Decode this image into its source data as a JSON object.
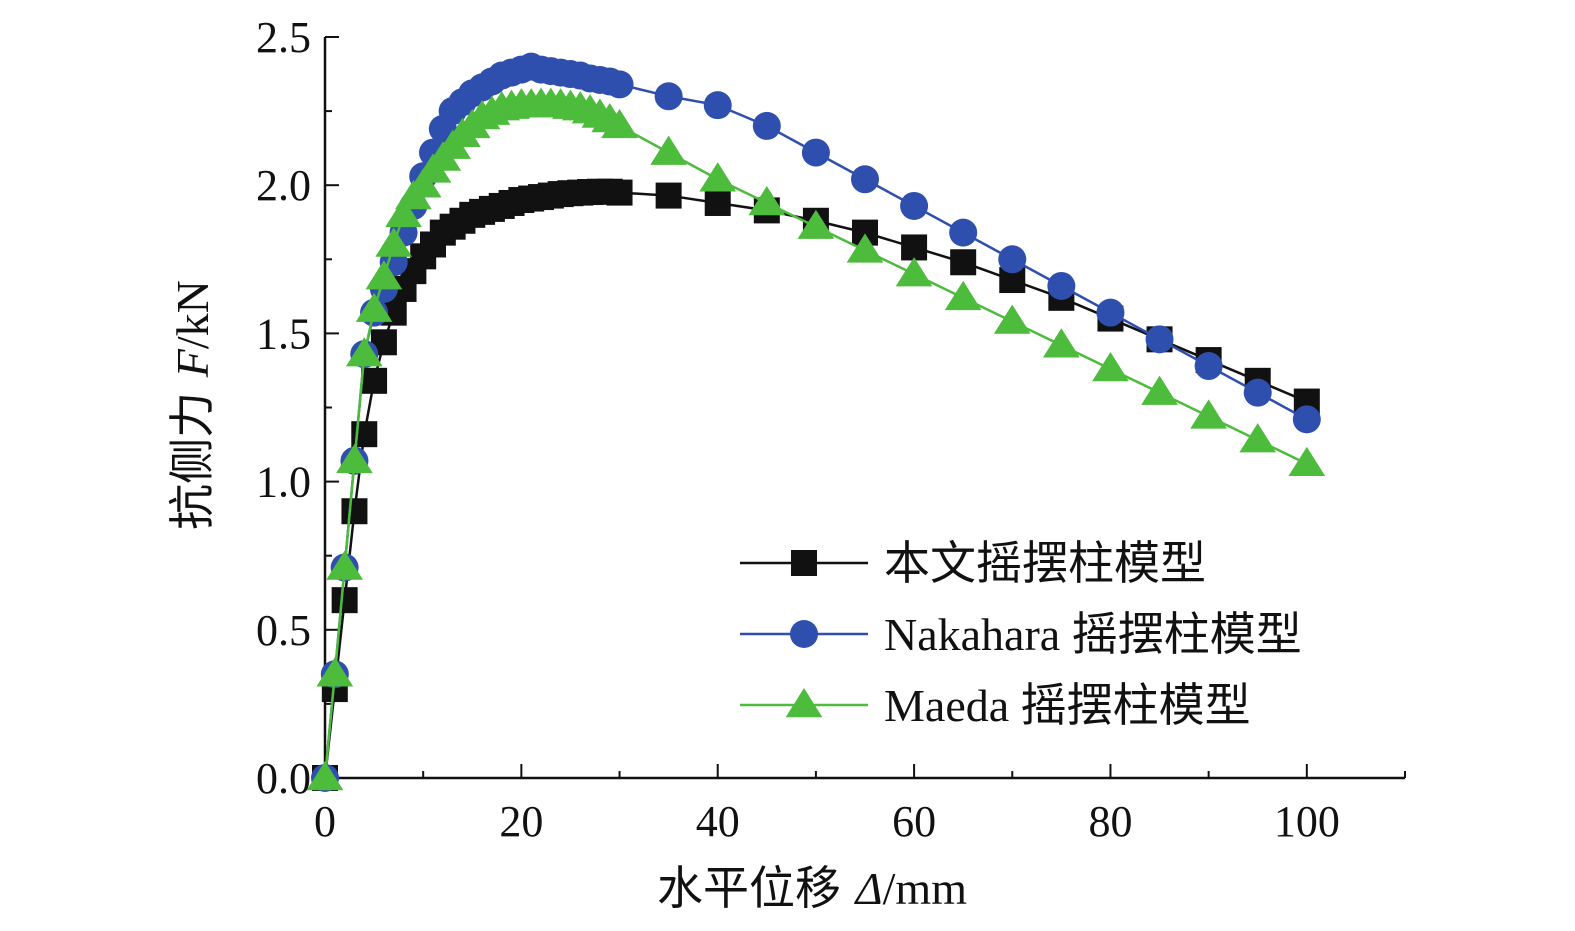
{
  "chart_data": {
    "type": "line",
    "xlabel": {
      "main": "水平位移 ",
      "var": "Δ",
      "unit": "/mm"
    },
    "ylabel": {
      "main": "抗侧力 ",
      "var": "F",
      "unit": "/kN"
    },
    "xlim": [
      0,
      110
    ],
    "ylim": [
      0,
      2.5
    ],
    "xticks": [
      0,
      20,
      40,
      60,
      80,
      100
    ],
    "xtick_labels": [
      "0",
      "20",
      "40",
      "60",
      "80",
      "100"
    ],
    "yticks": [
      0,
      0.5,
      1.0,
      1.5,
      2.0,
      2.5
    ],
    "ytick_labels": [
      "0.0",
      "0.5",
      "1.0",
      "1.5",
      "2.0",
      "2.5"
    ],
    "grid": false,
    "legend_position": "bottom-right",
    "series": [
      {
        "name": "本文摇摆柱模型",
        "color": "#111111",
        "marker": "square",
        "x": [
          0,
          1,
          2,
          3,
          4,
          5,
          6,
          7,
          8,
          9,
          10,
          11,
          12,
          13,
          14,
          15,
          16,
          17,
          18,
          19,
          20,
          21,
          22,
          23,
          24,
          25,
          26,
          27,
          28,
          29,
          30,
          35,
          40,
          45,
          50,
          55,
          60,
          65,
          70,
          75,
          80,
          85,
          90,
          95,
          100
        ],
        "y": [
          0,
          0.3,
          0.6,
          0.9,
          1.16,
          1.34,
          1.47,
          1.57,
          1.65,
          1.71,
          1.76,
          1.8,
          1.84,
          1.86,
          1.88,
          1.9,
          1.91,
          1.92,
          1.93,
          1.94,
          1.95,
          1.955,
          1.96,
          1.965,
          1.97,
          1.973,
          1.975,
          1.977,
          1.978,
          1.978,
          1.975,
          1.965,
          1.94,
          1.915,
          1.88,
          1.84,
          1.79,
          1.74,
          1.68,
          1.62,
          1.55,
          1.48,
          1.41,
          1.34,
          1.27
        ]
      },
      {
        "name": "Nakahara 摇摆柱模型",
        "color": "#2f4fae",
        "marker": "circle",
        "x": [
          0,
          1,
          2,
          3,
          4,
          5,
          6,
          7,
          8,
          9,
          10,
          11,
          12,
          13,
          14,
          15,
          16,
          17,
          18,
          19,
          20,
          21,
          22,
          23,
          24,
          25,
          26,
          27,
          28,
          29,
          30,
          35,
          40,
          45,
          50,
          55,
          60,
          65,
          70,
          75,
          80,
          85,
          90,
          95,
          100
        ],
        "y": [
          0,
          0.35,
          0.71,
          1.07,
          1.43,
          1.57,
          1.65,
          1.74,
          1.84,
          1.93,
          2.03,
          2.11,
          2.19,
          2.25,
          2.28,
          2.31,
          2.33,
          2.35,
          2.37,
          2.38,
          2.39,
          2.4,
          2.39,
          2.385,
          2.38,
          2.375,
          2.37,
          2.36,
          2.355,
          2.35,
          2.34,
          2.3,
          2.27,
          2.2,
          2.11,
          2.02,
          1.93,
          1.84,
          1.75,
          1.66,
          1.57,
          1.48,
          1.39,
          1.3,
          1.21
        ]
      },
      {
        "name": "Maeda 摇摆柱模型",
        "color": "#4dbb3c",
        "marker": "triangle",
        "x": [
          0,
          1,
          2,
          3,
          4,
          5,
          6,
          7,
          8,
          9,
          10,
          11,
          12,
          13,
          14,
          15,
          16,
          17,
          18,
          19,
          20,
          21,
          22,
          23,
          24,
          25,
          26,
          27,
          28,
          29,
          30,
          35,
          40,
          45,
          50,
          55,
          60,
          65,
          70,
          75,
          80,
          85,
          90,
          95,
          100
        ],
        "y": [
          0,
          0.35,
          0.71,
          1.07,
          1.43,
          1.58,
          1.69,
          1.8,
          1.9,
          1.96,
          2.0,
          2.05,
          2.09,
          2.13,
          2.17,
          2.2,
          2.23,
          2.245,
          2.26,
          2.265,
          2.27,
          2.27,
          2.272,
          2.272,
          2.27,
          2.265,
          2.26,
          2.25,
          2.235,
          2.22,
          2.2,
          2.11,
          2.02,
          1.94,
          1.86,
          1.78,
          1.7,
          1.62,
          1.54,
          1.46,
          1.38,
          1.3,
          1.22,
          1.14,
          1.06
        ]
      }
    ]
  }
}
